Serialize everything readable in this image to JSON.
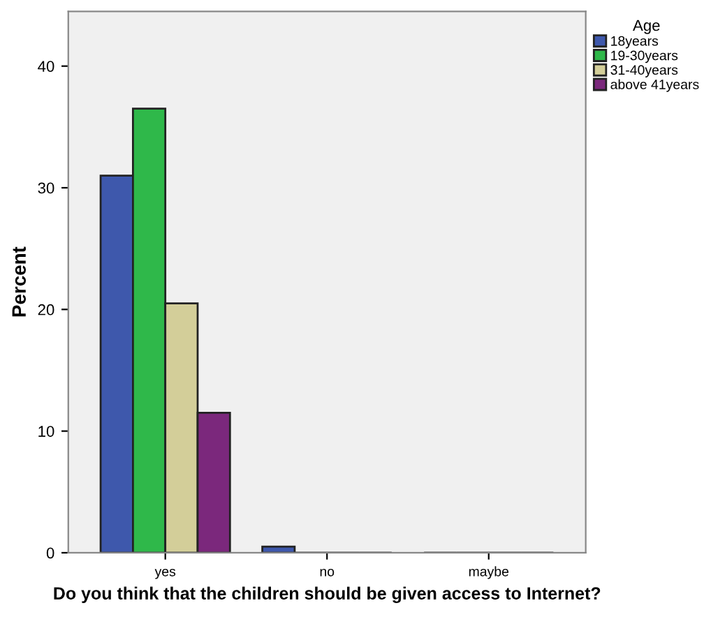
{
  "chart_data": {
    "type": "bar",
    "xlabel": "Do you think that the children should be given access to Internet?",
    "ylabel": "Percent",
    "legend_title": "Age",
    "categories": [
      "yes",
      "no",
      "maybe"
    ],
    "series": [
      {
        "name": "18years",
        "color": "#3e58ac",
        "values": [
          31,
          0.5,
          0
        ]
      },
      {
        "name": "19-30years",
        "color": "#2fb84a",
        "values": [
          36.5,
          0,
          0
        ]
      },
      {
        "name": "31-40years",
        "color": "#d3ce99",
        "values": [
          20.5,
          0,
          0
        ]
      },
      {
        "name": "above 41years",
        "color": "#7b287c",
        "values": [
          11.5,
          0,
          0
        ]
      }
    ],
    "ylim": [
      0,
      44.5
    ],
    "yticks": [
      0,
      10,
      20,
      30,
      40
    ],
    "grid": false,
    "legend": "top right"
  }
}
